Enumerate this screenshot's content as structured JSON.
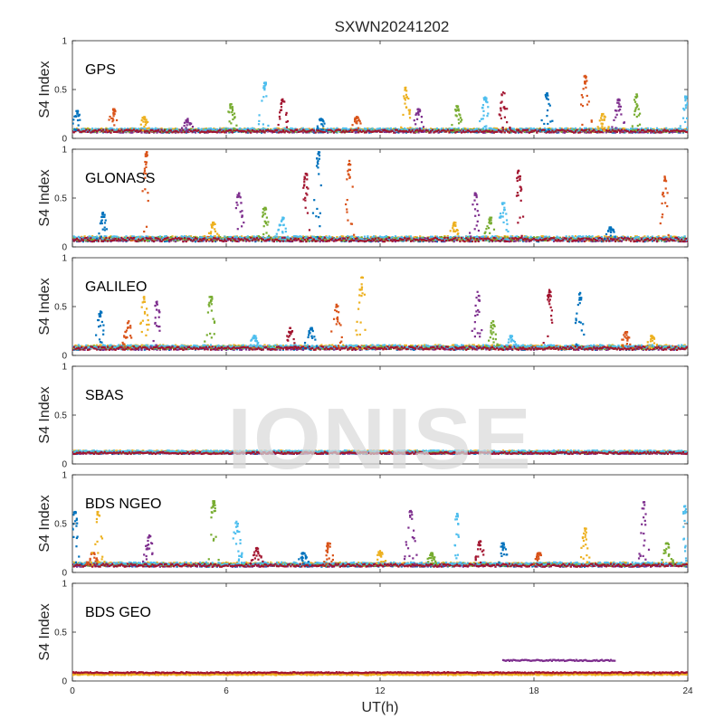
{
  "title": "SXWN20241202",
  "watermark": "IONISE",
  "xlabel": "UT(h)",
  "colors": [
    "#0072BD",
    "#D95319",
    "#EDB120",
    "#7E2F8E",
    "#77AC30",
    "#4DBEEE",
    "#A2142F"
  ],
  "chart_data": [
    {
      "type": "scatter",
      "panel_label": "GPS",
      "ylabel": "S4 Index",
      "xlim": [
        0,
        24
      ],
      "ylim": [
        0,
        1
      ],
      "xticks": [
        0,
        6,
        12,
        18,
        24
      ],
      "yticks": [
        0,
        0.5,
        1
      ],
      "ytick_labels": [
        "0",
        "0.5",
        "1"
      ],
      "baseline": 0.07,
      "noise": 0.03,
      "spikes": [
        {
          "x": 0.2,
          "y": 0.28
        },
        {
          "x": 1.6,
          "y": 0.3
        },
        {
          "x": 2.8,
          "y": 0.22
        },
        {
          "x": 4.5,
          "y": 0.2
        },
        {
          "x": 6.2,
          "y": 0.35
        },
        {
          "x": 7.5,
          "y": 0.57
        },
        {
          "x": 8.2,
          "y": 0.4
        },
        {
          "x": 9.7,
          "y": 0.2
        },
        {
          "x": 11.1,
          "y": 0.22
        },
        {
          "x": 13.0,
          "y": 0.52
        },
        {
          "x": 13.5,
          "y": 0.3
        },
        {
          "x": 15.0,
          "y": 0.33
        },
        {
          "x": 16.1,
          "y": 0.42
        },
        {
          "x": 16.8,
          "y": 0.47
        },
        {
          "x": 18.5,
          "y": 0.46
        },
        {
          "x": 20.0,
          "y": 0.64
        },
        {
          "x": 20.7,
          "y": 0.25
        },
        {
          "x": 21.3,
          "y": 0.4
        },
        {
          "x": 22.0,
          "y": 0.45
        },
        {
          "x": 23.9,
          "y": 0.43
        }
      ]
    },
    {
      "type": "scatter",
      "panel_label": "GLONASS",
      "ylabel": "S4 Index",
      "xlim": [
        0,
        24
      ],
      "ylim": [
        0,
        1
      ],
      "xticks": [
        0,
        6,
        12,
        18,
        24
      ],
      "yticks": [
        0,
        0.5,
        1
      ],
      "ytick_labels": [
        "0",
        "0.5",
        "1"
      ],
      "baseline": 0.07,
      "noise": 0.04,
      "spikes": [
        {
          "x": 1.2,
          "y": 0.35
        },
        {
          "x": 2.9,
          "y": 0.97
        },
        {
          "x": 5.5,
          "y": 0.25
        },
        {
          "x": 6.5,
          "y": 0.55
        },
        {
          "x": 7.5,
          "y": 0.4
        },
        {
          "x": 8.2,
          "y": 0.3
        },
        {
          "x": 9.1,
          "y": 0.75
        },
        {
          "x": 9.6,
          "y": 0.97
        },
        {
          "x": 10.8,
          "y": 0.88
        },
        {
          "x": 14.9,
          "y": 0.25
        },
        {
          "x": 15.7,
          "y": 0.55
        },
        {
          "x": 16.3,
          "y": 0.3
        },
        {
          "x": 16.8,
          "y": 0.45
        },
        {
          "x": 17.4,
          "y": 0.78
        },
        {
          "x": 21.0,
          "y": 0.2
        },
        {
          "x": 23.1,
          "y": 0.72
        }
      ]
    },
    {
      "type": "scatter",
      "panel_label": "GALILEO",
      "ylabel": "S4 Index",
      "xlim": [
        0,
        24
      ],
      "ylim": [
        0,
        1
      ],
      "xticks": [
        0,
        6,
        12,
        18,
        24
      ],
      "yticks": [
        0,
        0.5,
        1
      ],
      "ytick_labels": [
        "0",
        "0.5",
        "1"
      ],
      "baseline": 0.07,
      "noise": 0.035,
      "spikes": [
        {
          "x": 1.1,
          "y": 0.45
        },
        {
          "x": 2.2,
          "y": 0.35
        },
        {
          "x": 2.8,
          "y": 0.6
        },
        {
          "x": 3.3,
          "y": 0.55
        },
        {
          "x": 5.4,
          "y": 0.6
        },
        {
          "x": 7.1,
          "y": 0.2
        },
        {
          "x": 8.5,
          "y": 0.28
        },
        {
          "x": 9.3,
          "y": 0.28
        },
        {
          "x": 10.3,
          "y": 0.52
        },
        {
          "x": 11.3,
          "y": 0.8
        },
        {
          "x": 15.8,
          "y": 0.65
        },
        {
          "x": 16.4,
          "y": 0.35
        },
        {
          "x": 17.1,
          "y": 0.2
        },
        {
          "x": 18.6,
          "y": 0.67
        },
        {
          "x": 19.8,
          "y": 0.64
        },
        {
          "x": 21.6,
          "y": 0.24
        },
        {
          "x": 22.6,
          "y": 0.2
        }
      ]
    },
    {
      "type": "scatter",
      "panel_label": "SBAS",
      "ylabel": "S4 Index",
      "xlim": [
        0,
        24
      ],
      "ylim": [
        0,
        1
      ],
      "xticks": [
        0,
        6,
        12,
        18,
        24
      ],
      "yticks": [
        0,
        0.5,
        1
      ],
      "ytick_labels": [
        "0",
        "0.5",
        "1"
      ],
      "baseline": 0.11,
      "noise": 0.02,
      "spikes": []
    },
    {
      "type": "scatter",
      "panel_label": "BDS NGEO",
      "ylabel": "S4 Index",
      "xlim": [
        0,
        24
      ],
      "ylim": [
        0,
        1
      ],
      "xticks": [
        0,
        6,
        12,
        18,
        24
      ],
      "yticks": [
        0,
        0.5,
        1
      ],
      "ytick_labels": [
        "0",
        "0.5",
        "1"
      ],
      "baseline": 0.07,
      "noise": 0.03,
      "spikes": [
        {
          "x": 0.1,
          "y": 0.62
        },
        {
          "x": 0.8,
          "y": 0.2
        },
        {
          "x": 1.0,
          "y": 0.62
        },
        {
          "x": 3.0,
          "y": 0.38
        },
        {
          "x": 5.5,
          "y": 0.73
        },
        {
          "x": 6.4,
          "y": 0.52
        },
        {
          "x": 7.2,
          "y": 0.25
        },
        {
          "x": 9.0,
          "y": 0.2
        },
        {
          "x": 10.0,
          "y": 0.3
        },
        {
          "x": 12.0,
          "y": 0.22
        },
        {
          "x": 13.2,
          "y": 0.63
        },
        {
          "x": 14.0,
          "y": 0.2
        },
        {
          "x": 15.0,
          "y": 0.6
        },
        {
          "x": 15.9,
          "y": 0.32
        },
        {
          "x": 16.8,
          "y": 0.3
        },
        {
          "x": 18.2,
          "y": 0.2
        },
        {
          "x": 20.0,
          "y": 0.45
        },
        {
          "x": 22.3,
          "y": 0.72
        },
        {
          "x": 23.2,
          "y": 0.3
        },
        {
          "x": 23.9,
          "y": 0.68
        }
      ]
    },
    {
      "type": "scatter",
      "panel_label": "BDS GEO",
      "ylabel": "S4 Index",
      "xlim": [
        0,
        24
      ],
      "ylim": [
        0,
        1
      ],
      "xticks": [
        0,
        6,
        12,
        18,
        24
      ],
      "yticks": [
        0,
        0.5,
        1
      ],
      "ytick_labels": [
        "0",
        "0.5",
        "1"
      ],
      "show_xtick_labels": true,
      "xtick_labels": [
        "0",
        "6",
        "12",
        "18",
        "24"
      ],
      "tracks": [
        {
          "x_start": 0,
          "x_end": 24,
          "y": 0.075,
          "color_index": 1
        },
        {
          "x_start": 0,
          "x_end": 24,
          "y": 0.065,
          "color_index": 2
        },
        {
          "x_start": 0,
          "x_end": 24,
          "y": 0.085,
          "color_index": 6
        },
        {
          "x_start": 16.8,
          "x_end": 21.2,
          "y": 0.21,
          "color_index": 3
        }
      ]
    }
  ]
}
